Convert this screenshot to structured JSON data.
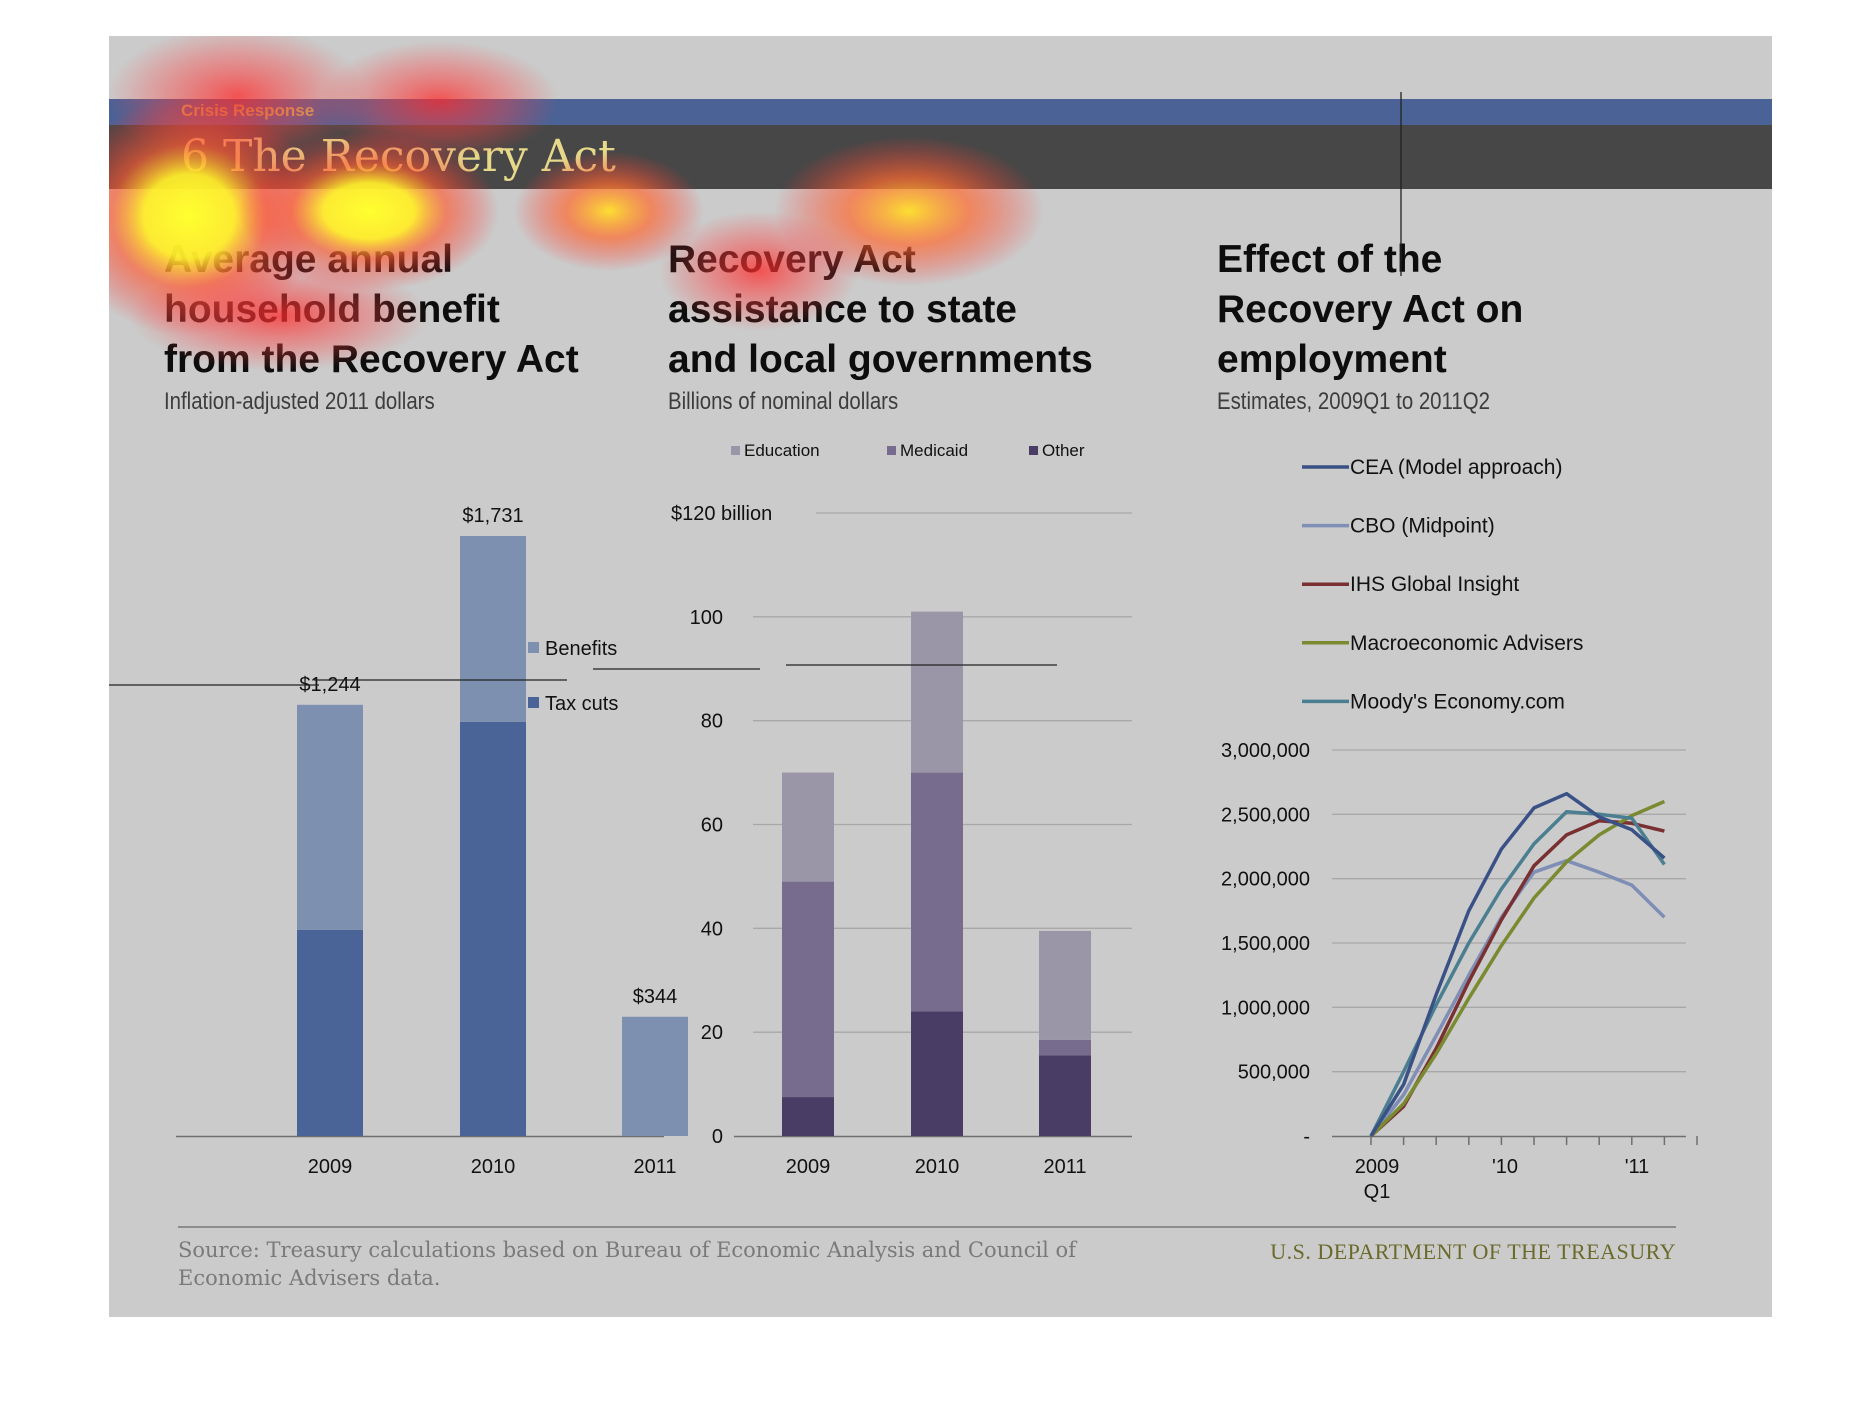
{
  "header": {
    "section": "Crisis Response",
    "title": "6 The Recovery Act"
  },
  "colors": {
    "tax_cuts": "#4a6498",
    "benefits": "#7e90b0",
    "education": "#9b95a8",
    "medicaid": "#776c8e",
    "other": "#4a3d65",
    "cea": "#3a5186",
    "cbo": "#7e8eb4",
    "ihs": "#7a3030",
    "macro": "#7a8a30",
    "moodys": "#4a7e90"
  },
  "panels": [
    {
      "title": [
        "Average annual",
        "household benefit",
        "from the Recovery Act"
      ],
      "subtitle": "Inflation-adjusted 2011 dollars"
    },
    {
      "title": [
        "Recovery Act",
        "assistance to state",
        "and local governments"
      ],
      "subtitle": "Billions of nominal dollars"
    },
    {
      "title": [
        "Effect of the",
        "Recovery Act on",
        "employment"
      ],
      "subtitle": "Estimates, 2009Q1 to 2011Q2"
    }
  ],
  "chart_data": [
    {
      "type": "bar",
      "stacked": true,
      "categories": [
        "2009",
        "2010",
        "2011"
      ],
      "series": [
        {
          "name": "Tax cuts",
          "values": [
            595,
            1195,
            0
          ]
        },
        {
          "name": "Benefits",
          "values": [
            649,
            536,
            344
          ]
        }
      ],
      "totals": [
        1244,
        1731,
        344
      ],
      "total_labels": [
        "$1,244",
        "$1,731",
        "$344"
      ],
      "ylim": [
        0,
        1800
      ],
      "legend": "right"
    },
    {
      "type": "bar",
      "stacked": true,
      "categories": [
        "2009",
        "2010",
        "2011"
      ],
      "series": [
        {
          "name": "Other",
          "values": [
            7.5,
            24,
            15.5
          ]
        },
        {
          "name": "Medicaid",
          "values": [
            41.5,
            46,
            3
          ]
        },
        {
          "name": "Education",
          "values": [
            21,
            31,
            21
          ]
        }
      ],
      "ylim": [
        0,
        120
      ],
      "yticks": [
        0,
        20,
        40,
        60,
        80,
        100,
        120
      ],
      "ytick_labels": [
        "0",
        "20",
        "40",
        "60",
        "80",
        "100",
        "$120 billion"
      ],
      "grid": true,
      "legend": "top"
    },
    {
      "type": "line",
      "x": [
        "2009Q1",
        "2009Q2",
        "2009Q3",
        "2009Q4",
        "2010Q1",
        "2010Q2",
        "2010Q3",
        "2010Q4",
        "2011Q1",
        "2011Q2"
      ],
      "x_tick_labels": [
        [
          "2009",
          "Q1"
        ],
        [
          "'10"
        ],
        [
          "'11"
        ]
      ],
      "series": [
        {
          "name": "CEA (Model approach)",
          "values": [
            0,
            400000,
            1100000,
            1750000,
            2230000,
            2550000,
            2660000,
            2480000,
            2380000,
            2160000
          ]
        },
        {
          "name": "CBO (Midpoint)",
          "values": [
            0,
            320000,
            780000,
            1250000,
            1700000,
            2050000,
            2140000,
            2050000,
            1950000,
            1700000
          ]
        },
        {
          "name": "IHS Global Insight",
          "values": [
            0,
            230000,
            680000,
            1200000,
            1680000,
            2100000,
            2340000,
            2450000,
            2430000,
            2370000
          ]
        },
        {
          "name": "Macroeconomic Advisers",
          "values": [
            0,
            250000,
            640000,
            1070000,
            1480000,
            1850000,
            2130000,
            2340000,
            2490000,
            2600000
          ]
        },
        {
          "name": "Moody's Economy.com",
          "values": [
            0,
            500000,
            1020000,
            1500000,
            1920000,
            2270000,
            2520000,
            2500000,
            2470000,
            2110000
          ]
        }
      ],
      "ylim": [
        0,
        3000000
      ],
      "yticks": [
        0,
        500000,
        1000000,
        1500000,
        2000000,
        2500000,
        3000000
      ],
      "ytick_labels": [
        "-",
        "500,000",
        "1,000,000",
        "1,500,000",
        "2,000,000",
        "2,500,000",
        "3,000,000"
      ],
      "grid": true,
      "legend": "top"
    }
  ],
  "footer": {
    "source": "Source: Treasury calculations based on Bureau of Economic Analysis and Council of Economic Advisers data.",
    "org": "U.S. DEPARTMENT OF THE TREASURY"
  }
}
